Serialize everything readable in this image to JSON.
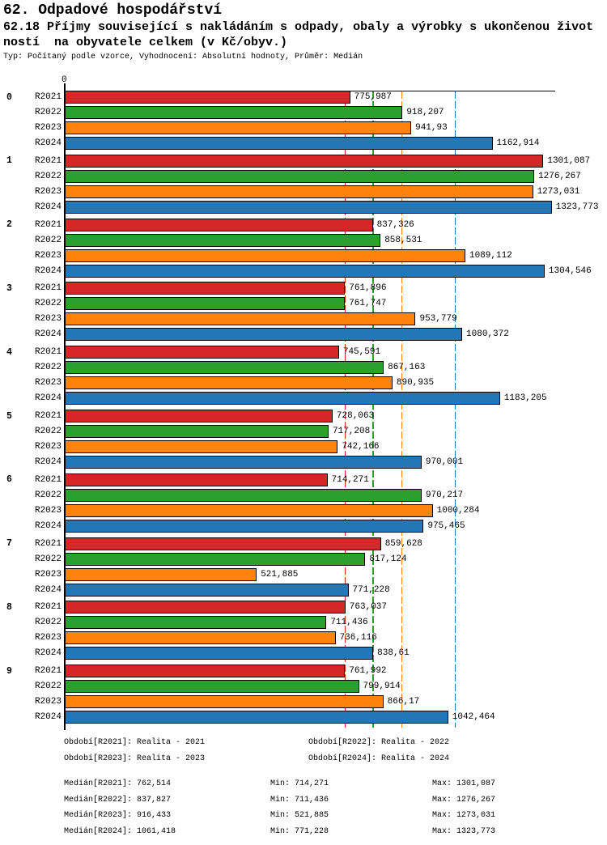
{
  "header": {
    "title1": "62. Odpadové hospodářství",
    "title2": "62.18 Příjmy související s nakládáním s odpady, obaly a výrobky s ukončenou život",
    "title3": "ností  na obyvatele celkem (v Kč/obyv.)",
    "subtitle": "Typ: Počítaný podle vzorce, Vyhodnocení: Absolutní hodnoty, Průměr: Medián"
  },
  "chart_data": {
    "type": "bar",
    "orientation": "horizontal",
    "axis_origin_label": "0",
    "series_meta": [
      {
        "name": "R2021",
        "color": "#d62728",
        "median": 762.514
      },
      {
        "name": "R2022",
        "color": "#2ca02c",
        "median": 837.827
      },
      {
        "name": "R2023",
        "color": "#fd830d",
        "median": 916.433
      },
      {
        "name": "R2024",
        "color": "#2277b4",
        "median": 1061.418
      }
    ],
    "groups": [
      {
        "label": "0",
        "values": [
          775.987,
          918.207,
          941.93,
          1162.914
        ],
        "displays": [
          "775,987",
          "918,207",
          "941,93",
          "1162,914"
        ]
      },
      {
        "label": "1",
        "values": [
          1301.087,
          1276.267,
          1273.031,
          1323.773
        ],
        "displays": [
          "1301,087",
          "1276,267",
          "1273,031",
          "1323,773"
        ]
      },
      {
        "label": "2",
        "values": [
          837.326,
          858.531,
          1089.112,
          1304.546
        ],
        "displays": [
          "837,326",
          "858,531",
          "1089,112",
          "1304,546"
        ]
      },
      {
        "label": "3",
        "values": [
          761.896,
          761.747,
          953.779,
          1080.372
        ],
        "displays": [
          "761,896",
          "761,747",
          "953,779",
          "1080,372"
        ]
      },
      {
        "label": "4",
        "values": [
          745.591,
          867.163,
          890.935,
          1183.205
        ],
        "displays": [
          "745,591",
          "867,163",
          "890,935",
          "1183,205"
        ]
      },
      {
        "label": "5",
        "values": [
          728.063,
          717.208,
          742.166,
          970.001
        ],
        "displays": [
          "728,063",
          "717,208",
          "742,166",
          "970,001"
        ]
      },
      {
        "label": "6",
        "values": [
          714.271,
          970.217,
          1000.284,
          975.465
        ],
        "displays": [
          "714,271",
          "970,217",
          "1000,284",
          "975,465"
        ]
      },
      {
        "label": "7",
        "values": [
          859.628,
          817.124,
          521.885,
          771.228
        ],
        "displays": [
          "859,628",
          "817,124",
          "521,885",
          "771,228"
        ]
      },
      {
        "label": "8",
        "values": [
          763.037,
          711.436,
          736.116,
          838.61
        ],
        "displays": [
          "763,037",
          "711,436",
          "736,116",
          "838,61"
        ]
      },
      {
        "label": "9",
        "values": [
          761.992,
          799.914,
          866.17,
          1042.464
        ],
        "displays": [
          "761,992",
          "799,914",
          "866,17",
          "1042,464"
        ]
      }
    ],
    "xlim": [
      0,
      1335
    ],
    "grid": "median-lines-per-series",
    "legend_position": "bottom"
  },
  "legend": {
    "rows": [
      [
        "Období[R2021]: Realita - 2021",
        "Období[R2022]: Realita - 2022"
      ],
      [
        "Období[R2023]: Realita - 2023",
        "Období[R2024]: Realita - 2024"
      ]
    ]
  },
  "stats": {
    "rows": [
      {
        "median": "Medián[R2021]: 762,514",
        "min": "Min: 714,271",
        "max": "Max: 1301,087"
      },
      {
        "median": "Medián[R2022]: 837,827",
        "min": "Min: 711,436",
        "max": "Max: 1276,267"
      },
      {
        "median": "Medián[R2023]: 916,433",
        "min": "Min: 521,885",
        "max": "Max: 1273,031"
      },
      {
        "median": "Medián[R2024]: 1061,418",
        "min": "Min: 771,228",
        "max": "Max: 1323,773"
      }
    ]
  }
}
